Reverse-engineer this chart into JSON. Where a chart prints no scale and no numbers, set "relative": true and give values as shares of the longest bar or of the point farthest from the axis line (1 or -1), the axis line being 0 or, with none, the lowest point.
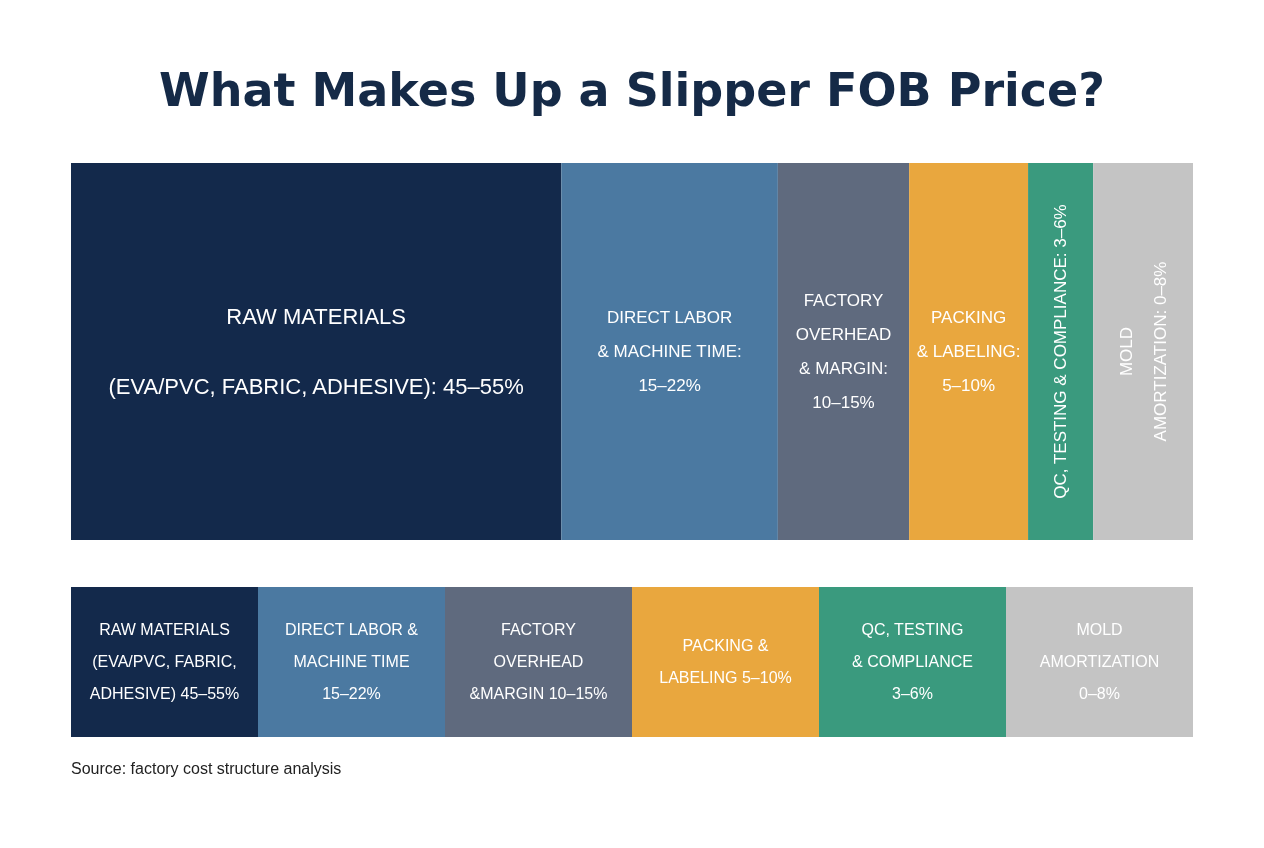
{
  "chart_data": [
    {
      "type": "bar",
      "title": "What Makes Up a Slipper FOB Price?",
      "stacked": true,
      "orientation": "horizontal",
      "relative": true,
      "categories": [
        null
      ],
      "series": [
        {
          "name": "RAW MATERIALS\n(EVA/PVC, FABRIC, ADHESIVE): 45–55%",
          "color": "#13294b",
          "values": [
            0.437
          ]
        },
        {
          "name": "DIRECT LABOR\n& MACHINE TIME:\n15–22%",
          "color": "#4b79a1",
          "values": [
            0.193
          ]
        },
        {
          "name": "FACTORY\nOVERHEAD\n& MARGIN:\n10–15%",
          "color": "#5f6a7e",
          "values": [
            0.117
          ]
        },
        {
          "name": "PACKING\n& LABELING:\n5–10%",
          "color": "#e9a73e",
          "values": [
            0.106
          ]
        },
        {
          "name": "QC, TESTING & COMPLIANCE: 3–6%",
          "color": "#3a9a7e",
          "values": [
            0.058
          ]
        },
        {
          "name": "MOLD\nAMORTIZATION: 0–8%",
          "color": "#c4c4c4",
          "values": [
            0.089
          ]
        }
      ],
      "annotations": [
        "Source: factory cost structure analysis"
      ]
    },
    {
      "type": "other",
      "categories": [
        "RAW MATERIALS\n(EVA/PVC, FABRIC,\nADHESIVE) 45–55%",
        "DIRECT LABOR &\nMACHINE TIME\n15–22%",
        "FACTORY\nOVERHEAD\n&MARGIN 10–15%",
        "PACKING &\nLABELING 5–10%",
        "QC, TESTING\n& COMPLIANCE\n3–6%",
        "MOLD\nAMORTIZATION\n0–8%"
      ],
      "colors": [
        "#13294b",
        "#4b79a1",
        "#5f6a7e",
        "#e9a73e",
        "#3a9a7e",
        "#c4c4c4"
      ]
    }
  ]
}
